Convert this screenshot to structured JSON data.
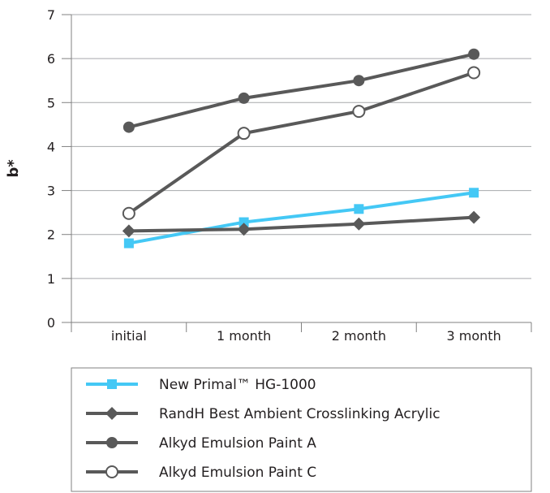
{
  "chart_data": {
    "type": "line",
    "categories": [
      "initial",
      "1 month",
      "2 month",
      "3 month"
    ],
    "ylabel": "b*",
    "xlabel": "",
    "ylim": [
      0,
      7
    ],
    "yticks": [
      "0",
      "1",
      "2",
      "3",
      "4",
      "5",
      "6",
      "7"
    ],
    "grid": true,
    "legend_position": "bottom",
    "series": [
      {
        "name": "New Primal™ HG-1000",
        "values": [
          1.8,
          2.28,
          2.58,
          2.95
        ],
        "color": "#44c8f5",
        "marker": "square"
      },
      {
        "name": "RandH Best Ambient Crosslinking Acrylic",
        "values": [
          2.08,
          2.12,
          2.24,
          2.39
        ],
        "color": "#595959",
        "marker": "diamond"
      },
      {
        "name": "Alkyd Emulsion Paint A",
        "values": [
          4.44,
          5.1,
          5.5,
          6.1
        ],
        "color": "#595959",
        "marker": "circle"
      },
      {
        "name": "Alkyd Emulsion Paint C",
        "values": [
          2.48,
          4.3,
          4.8,
          5.68
        ],
        "color": "#595959",
        "marker": "open-circle"
      }
    ]
  }
}
